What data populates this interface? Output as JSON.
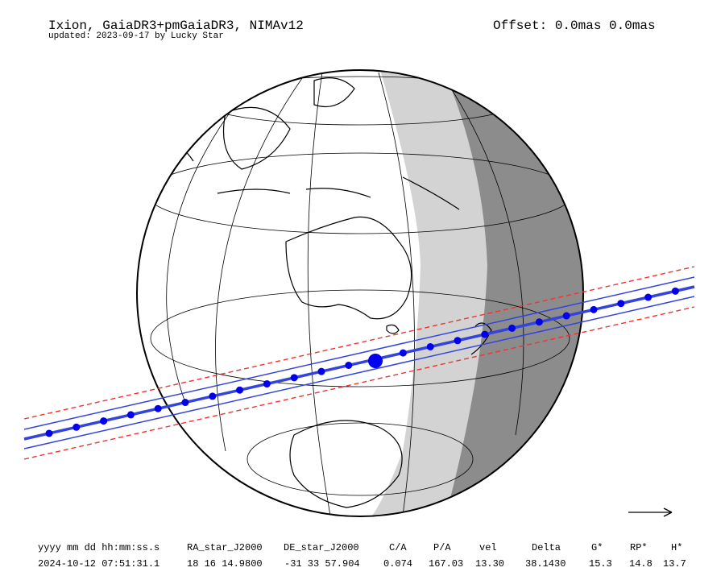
{
  "header": {
    "title": "Ixion, GaiaDR3+pmGaiaDR3, NIMAv12",
    "subtitle": "updated: 2023-09-17 by Lucky Star",
    "offset": "Offset: 0.0mas 0.0mas"
  },
  "table": {
    "columns": [
      "yyyy mm dd hh:mm:ss.s",
      "RA_star_J2000",
      "DE_star_J2000",
      "C/A",
      "P/A",
      "vel",
      "Delta",
      "G*",
      "RP*",
      "H*"
    ],
    "rows": [
      [
        "2024-10-12 07:51:31.1",
        "18 16 14.9800",
        "-31 33 57.904",
        "0.074",
        "167.03",
        "13.30",
        "38.1430",
        "15.3",
        "14.8",
        "13.7"
      ]
    ]
  }
}
